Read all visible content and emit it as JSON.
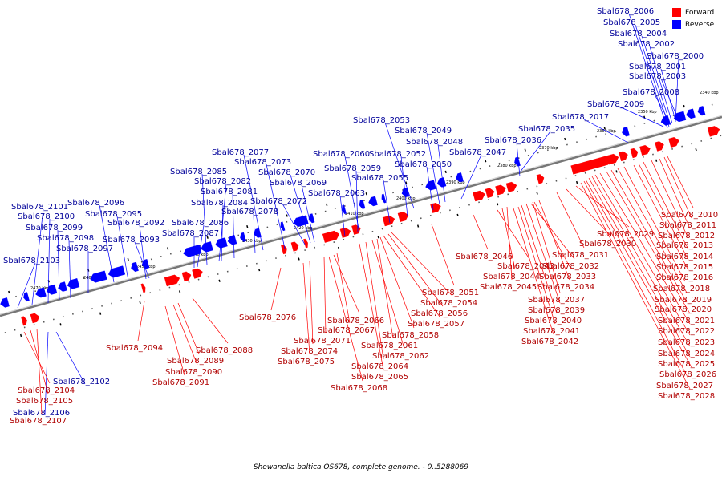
{
  "caption": "Shewanella baltica OS678, complete genome. - 0..5288069",
  "legend": [
    {
      "label": "Forward",
      "color": "#ff0000"
    },
    {
      "label": "Reverse",
      "color": "#0000ff"
    }
  ],
  "colors": {
    "forward": "#ff0000",
    "reverse": "#0000ff",
    "forward_label": "#b00000",
    "reverse_label": "#000099",
    "axis": "#777777"
  },
  "ticks": [
    "2340 kbp",
    "2350 kbp",
    "2360 kbp",
    "2370 kbp",
    "2380 kbp",
    "2390 kbp",
    "2400 kbp",
    "2410 kbp",
    "2420 kbp",
    "2430 kbp",
    "2440 kbp",
    "2450 kbp",
    "2460 kbp",
    "2470 kbp"
  ],
  "reverse_genes": [
    "Sbal678_2006",
    "Sbal678_2005",
    "Sbal678_2004",
    "Sbal678_2002",
    "Sbal678_2000",
    "Sbal678_2001",
    "Sbal678_2003",
    "Sbal678_2008",
    "Sbal678_2009",
    "Sbal678_2017",
    "Sbal678_2035",
    "Sbal678_2036",
    "Sbal678_2053",
    "Sbal678_2049",
    "Sbal678_2048",
    "Sbal678_2047",
    "Sbal678_2077",
    "Sbal678_2060",
    "Sbal678_2052",
    "Sbal678_2073",
    "Sbal678_2059",
    "Sbal678_2050",
    "Sbal678_2085",
    "Sbal678_2070",
    "Sbal678_2055",
    "Sbal678_2082",
    "Sbal678_2069",
    "Sbal678_2081",
    "Sbal678_2063",
    "Sbal678_2096",
    "Sbal678_2084",
    "Sbal678_2072",
    "Sbal678_2101",
    "Sbal678_2078",
    "Sbal678_2100",
    "Sbal678_2095",
    "Sbal678_2086",
    "Sbal678_2092",
    "Sbal678_2099",
    "Sbal678_2087",
    "Sbal678_2098",
    "Sbal678_2093",
    "Sbal678_2097",
    "Sbal678_2103",
    "Sbal678_2102",
    "Sbal678_2106"
  ],
  "forward_genes": [
    "Sbal678_2010",
    "Sbal678_2011",
    "Sbal678_2012",
    "Sbal678_2029",
    "Sbal678_2013",
    "Sbal678_2030",
    "Sbal678_2014",
    "Sbal678_2031",
    "Sbal678_2046",
    "Sbal678_2015",
    "Sbal678_2043",
    "Sbal678_2032",
    "Sbal678_2016",
    "Sbal678_2044",
    "Sbal678_2033",
    "Sbal678_2045",
    "Sbal678_2034",
    "Sbal678_2018",
    "Sbal678_2051",
    "Sbal678_2037",
    "Sbal678_2019",
    "Sbal678_2054",
    "Sbal678_2039",
    "Sbal678_2020",
    "Sbal678_2056",
    "Sbal678_2076",
    "Sbal678_2066",
    "Sbal678_2040",
    "Sbal678_2021",
    "Sbal678_2057",
    "Sbal678_2067",
    "Sbal678_2041",
    "Sbal678_2022",
    "Sbal678_2058",
    "Sbal678_2071",
    "Sbal678_2042",
    "Sbal678_2023",
    "Sbal678_2061",
    "Sbal678_2094",
    "Sbal678_2088",
    "Sbal678_2074",
    "Sbal678_2024",
    "Sbal678_2062",
    "Sbal678_2089",
    "Sbal678_2075",
    "Sbal678_2025",
    "Sbal678_2064",
    "Sbal678_2090",
    "Sbal678_2026",
    "Sbal678_2065",
    "Sbal678_2091",
    "Sbal678_2027",
    "Sbal678_2068",
    "Sbal678_2104",
    "Sbal678_2028",
    "Sbal678_2105",
    "Sbal678_2107"
  ]
}
